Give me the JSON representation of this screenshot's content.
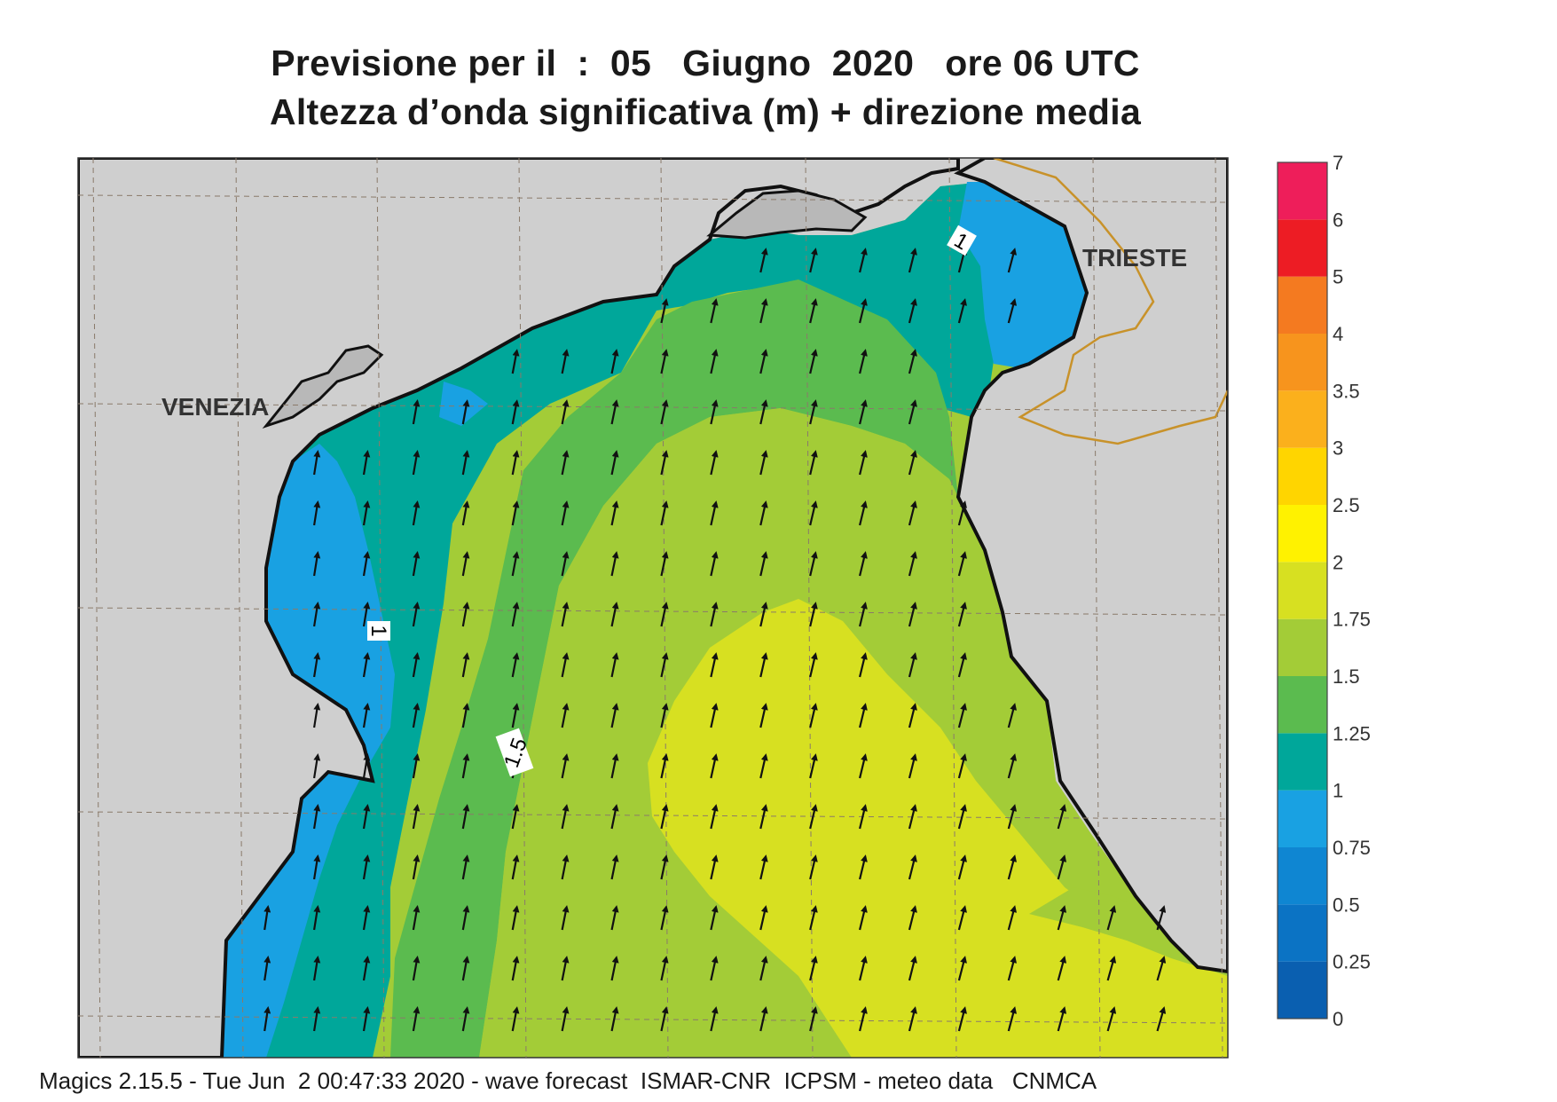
{
  "title": {
    "line1": "Previsione per il  :  05   Giugno  2020   ore 06 UTC",
    "line2": "Altezza d’onda significativa (m) + direzione media"
  },
  "footer": "Magics 2.15.5 - Tue Jun  2 00:47:33 2020 - wave forecast  ISMAR-CNR  ICPSM - meteo data   CNMCA",
  "map": {
    "land_color": "#cfcfcf",
    "cities": [
      {
        "name": "VENEZIA"
      },
      {
        "name": "TRIESTE"
      }
    ],
    "contour_labels": [
      "1",
      "1",
      "1.5"
    ],
    "arrow_direction": "north to north-north-east"
  },
  "colorbar": {
    "unit": "m",
    "levels": [
      {
        "label": "0",
        "color": "#0a5fb0"
      },
      {
        "label": "0.25",
        "color": "#0b73c4"
      },
      {
        "label": "0.5",
        "color": "#0f86d2"
      },
      {
        "label": "0.75",
        "color": "#19a1e2"
      },
      {
        "label": "1",
        "color": "#00a79a"
      },
      {
        "label": "1.25",
        "color": "#5bbb4f"
      },
      {
        "label": "1.5",
        "color": "#a3cc37"
      },
      {
        "label": "1.75",
        "color": "#d7e021"
      },
      {
        "label": "2",
        "color": "#fff200"
      },
      {
        "label": "2.5",
        "color": "#ffd500"
      },
      {
        "label": "3",
        "color": "#fbb01c"
      },
      {
        "label": "3.5",
        "color": "#f7941d"
      },
      {
        "label": "4",
        "color": "#f47a20"
      },
      {
        "label": "5",
        "color": "#ed1c24"
      },
      {
        "label": "6",
        "color": "#ee1e5a"
      },
      {
        "label": "7",
        "color": ""
      }
    ]
  }
}
